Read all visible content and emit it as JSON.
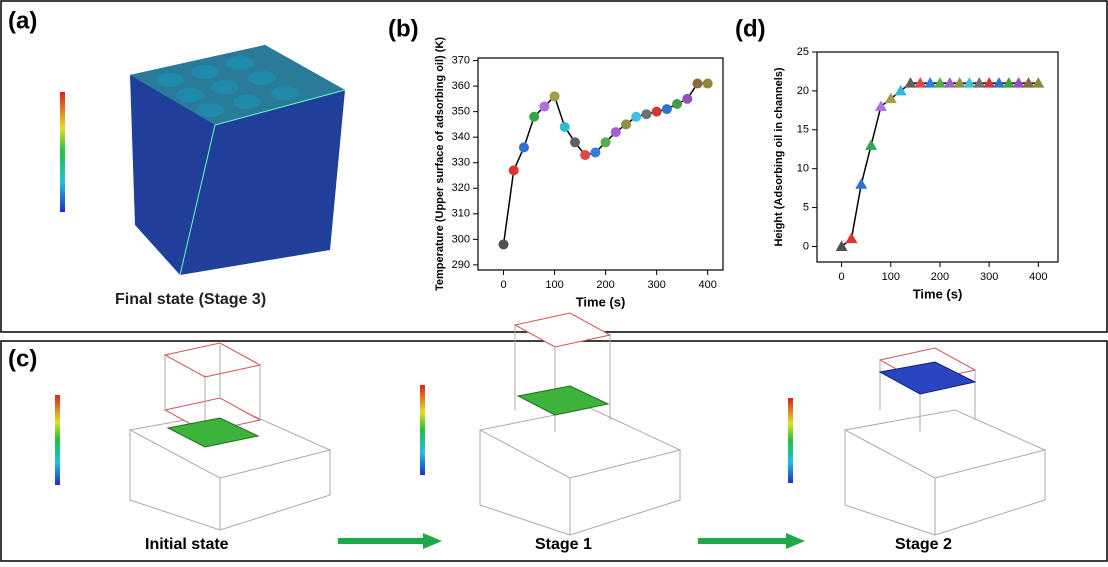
{
  "panel_a": {
    "label": "(a)",
    "caption": "Final state (Stage 3)"
  },
  "panel_c": {
    "label": "(c)",
    "captions": [
      "Initial state",
      "Stage 1",
      "Stage 2"
    ]
  },
  "chart_data": [
    {
      "type": "line",
      "panel": "(b)",
      "marker": "circle",
      "line_color": "#000000",
      "xlabel": "Time (s)",
      "ylabel": "Temperature (Upper surface of adsorbing oil) (K)",
      "x": [
        0,
        20,
        40,
        60,
        80,
        100,
        120,
        140,
        160,
        180,
        200,
        220,
        240,
        260,
        280,
        300,
        320,
        340,
        360,
        380,
        400
      ],
      "values": [
        298,
        327,
        336,
        348,
        352,
        356,
        344,
        338,
        333,
        334,
        338,
        342,
        345,
        348,
        349,
        350,
        351,
        353,
        355,
        361,
        361
      ],
      "colors": [
        "#505050",
        "#e03030",
        "#2e6fd8",
        "#2ea84a",
        "#b070e0",
        "#a0a040",
        "#30b8d8",
        "#606060",
        "#e04848",
        "#3080e0",
        "#50b050",
        "#a060d0",
        "#909040",
        "#40c0e0",
        "#707070",
        "#d03838",
        "#3070d0",
        "#40a040",
        "#9050c0",
        "#8a6a3a",
        "#8a8a3a"
      ],
      "xlim": [
        -50,
        430
      ],
      "xticks": [
        0,
        100,
        200,
        300,
        400
      ],
      "ylim": [
        288,
        371
      ],
      "yticks": [
        290,
        300,
        310,
        320,
        330,
        340,
        350,
        360,
        370
      ]
    },
    {
      "type": "line",
      "panel": "(d)",
      "marker": "triangle",
      "line_color": "#000000",
      "xlabel": "Time (s)",
      "ylabel": "Height (Adsorbing oil in channels)",
      "x": [
        0,
        20,
        40,
        60,
        80,
        100,
        120,
        140,
        160,
        180,
        200,
        220,
        240,
        260,
        280,
        300,
        320,
        340,
        360,
        380,
        400
      ],
      "values": [
        0,
        1,
        8,
        13,
        18,
        19,
        20,
        21,
        21,
        21,
        21,
        21,
        21,
        21,
        21,
        21,
        21,
        21,
        21,
        21,
        21
      ],
      "colors": [
        "#505050",
        "#e03030",
        "#2e6fd8",
        "#2ea84a",
        "#b070e0",
        "#a0a040",
        "#30b8d8",
        "#606060",
        "#e04848",
        "#3080e0",
        "#50b050",
        "#a060d0",
        "#909040",
        "#40c0e0",
        "#707070",
        "#d03838",
        "#3070d0",
        "#40a040",
        "#9050c0",
        "#8a6a3a",
        "#8a8a3a"
      ],
      "xlim": [
        -50,
        440
      ],
      "xticks": [
        0,
        100,
        200,
        300,
        400
      ],
      "ylim": [
        -2,
        25
      ],
      "yticks": [
        0,
        5,
        10,
        15,
        20,
        25
      ]
    }
  ]
}
